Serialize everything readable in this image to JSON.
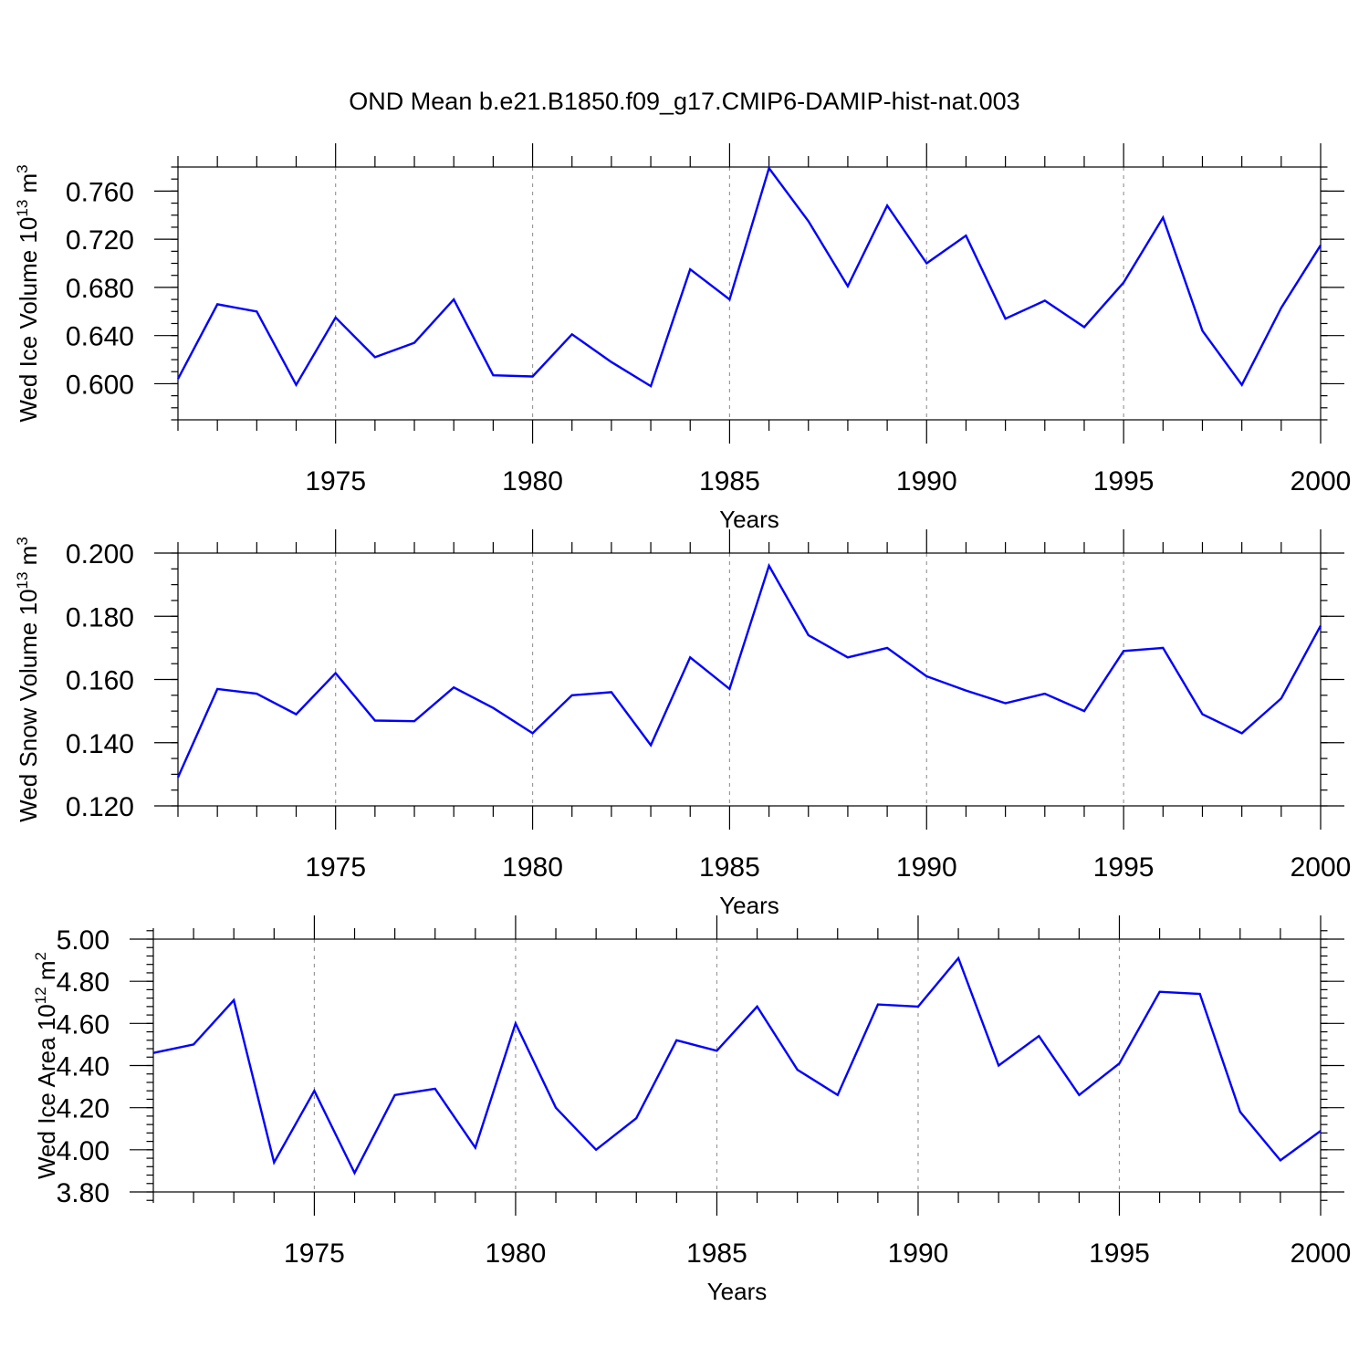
{
  "title": "OND Mean b.e21.B1850.f09_g17.CMIP6-DAMIP-hist-nat.003",
  "line_color": "#0000ff",
  "chart_data": [
    {
      "type": "line",
      "ylabel": "Wed Ice Volume 10",
      "ylabel_exp": "13",
      "ylabel_unit": " m",
      "ylabel_unit_exp": "3",
      "xlabel": "Years",
      "xlim": [
        1971,
        2000
      ],
      "ylim": [
        0.57,
        0.78
      ],
      "yticks": [
        0.6,
        0.64,
        0.68,
        0.72,
        0.76
      ],
      "ytick_labels": [
        "0.600",
        "0.640",
        "0.680",
        "0.720",
        "0.760"
      ],
      "yminor_step": 0.01,
      "xticks": [
        1975,
        1980,
        1985,
        1990,
        1995,
        2000
      ],
      "xtick_labels": [
        "1975",
        "1980",
        "1985",
        "1990",
        "1995",
        "2000"
      ],
      "grid": "dashed vertical at major x ticks",
      "x": [
        1971,
        1972,
        1973,
        1974,
        1975,
        1976,
        1977,
        1978,
        1979,
        1980,
        1981,
        1982,
        1983,
        1984,
        1985,
        1986,
        1987,
        1988,
        1989,
        1990,
        1991,
        1992,
        1993,
        1994,
        1995,
        1996,
        1997,
        1998,
        1999,
        2000
      ],
      "values": [
        0.604,
        0.666,
        0.66,
        0.599,
        0.655,
        0.622,
        0.634,
        0.67,
        0.607,
        0.606,
        0.641,
        0.618,
        0.598,
        0.695,
        0.67,
        0.779,
        0.735,
        0.681,
        0.748,
        0.7,
        0.723,
        0.654,
        0.669,
        0.647,
        0.684,
        0.738,
        0.644,
        0.599,
        0.663,
        0.715
      ]
    },
    {
      "type": "line",
      "ylabel": "Wed Snow Volume 10",
      "ylabel_exp": "13",
      "ylabel_unit": " m",
      "ylabel_unit_exp": "3",
      "xlabel": "Years",
      "xlim": [
        1971,
        2000
      ],
      "ylim": [
        0.12,
        0.2
      ],
      "yticks": [
        0.12,
        0.14,
        0.16,
        0.18,
        0.2
      ],
      "ytick_labels": [
        "0.120",
        "0.140",
        "0.160",
        "0.180",
        "0.200"
      ],
      "yminor_step": 0.005,
      "xticks": [
        1975,
        1980,
        1985,
        1990,
        1995,
        2000
      ],
      "xtick_labels": [
        "1975",
        "1980",
        "1985",
        "1990",
        "1995",
        "2000"
      ],
      "grid": "dashed vertical at major x ticks",
      "x": [
        1971,
        1972,
        1973,
        1974,
        1975,
        1976,
        1977,
        1978,
        1979,
        1980,
        1981,
        1982,
        1983,
        1984,
        1985,
        1986,
        1987,
        1988,
        1989,
        1990,
        1991,
        1992,
        1993,
        1994,
        1995,
        1996,
        1997,
        1998,
        1999,
        2000
      ],
      "values": [
        0.129,
        0.157,
        0.1555,
        0.149,
        0.162,
        0.147,
        0.1468,
        0.1575,
        0.151,
        0.143,
        0.155,
        0.156,
        0.1392,
        0.167,
        0.157,
        0.196,
        0.174,
        0.167,
        0.17,
        0.161,
        0.1565,
        0.1525,
        0.1555,
        0.15,
        0.169,
        0.17,
        0.149,
        0.143,
        0.154,
        0.177
      ]
    },
    {
      "type": "line",
      "ylabel": "Wed Ice Area 10",
      "ylabel_exp": "12",
      "ylabel_unit": " m",
      "ylabel_unit_exp": "2",
      "xlabel": "Years",
      "xlim": [
        1971,
        2000
      ],
      "ylim": [
        3.8,
        5.0
      ],
      "yticks": [
        3.8,
        4.0,
        4.2,
        4.4,
        4.6,
        4.8,
        5.0
      ],
      "ytick_labels": [
        "3.80",
        "4.00",
        "4.20",
        "4.40",
        "4.60",
        "4.80",
        "5.00"
      ],
      "yminor_step": 0.04,
      "xticks": [
        1975,
        1980,
        1985,
        1990,
        1995,
        2000
      ],
      "xtick_labels": [
        "1975",
        "1980",
        "1985",
        "1990",
        "1995",
        "2000"
      ],
      "grid": "dashed vertical at major x ticks",
      "x": [
        1971,
        1972,
        1973,
        1974,
        1975,
        1976,
        1977,
        1978,
        1979,
        1980,
        1981,
        1982,
        1983,
        1984,
        1985,
        1986,
        1987,
        1988,
        1989,
        1990,
        1991,
        1992,
        1993,
        1994,
        1995,
        1996,
        1997,
        1998,
        1999,
        2000
      ],
      "values": [
        4.46,
        4.5,
        4.71,
        3.94,
        4.28,
        3.89,
        4.26,
        4.29,
        4.01,
        4.6,
        4.2,
        4.0,
        4.15,
        4.52,
        4.47,
        4.68,
        4.38,
        4.26,
        4.69,
        4.68,
        4.91,
        4.4,
        4.54,
        4.26,
        4.41,
        4.75,
        4.74,
        4.18,
        3.95,
        4.09
      ]
    }
  ]
}
